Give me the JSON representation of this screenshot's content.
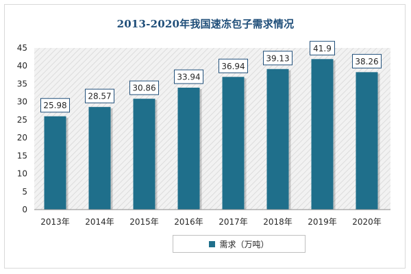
{
  "chart_data": {
    "type": "bar",
    "title": "2013-2020年我国速冻包子需求情况",
    "categories": [
      "2013年",
      "2014年",
      "2015年",
      "2016年",
      "2017年",
      "2018年",
      "2019年",
      "2020年"
    ],
    "series": [
      {
        "name": "需求（万吨）",
        "values": [
          25.98,
          28.57,
          30.86,
          33.94,
          36.94,
          39.13,
          41.9,
          38.26
        ],
        "labels": [
          "25.98",
          "28.57",
          "30.86",
          "33.94",
          "36.94",
          "39.13",
          "41.9",
          "38.26"
        ],
        "color": "#1f6f8b"
      }
    ],
    "ylim": [
      0,
      45
    ],
    "yticks": [
      0,
      5,
      10,
      15,
      20,
      25,
      30,
      35,
      40,
      45
    ],
    "xlabel": "",
    "ylabel": "",
    "grid": false,
    "plot_background": "hatched",
    "legend": "bottom-center"
  }
}
